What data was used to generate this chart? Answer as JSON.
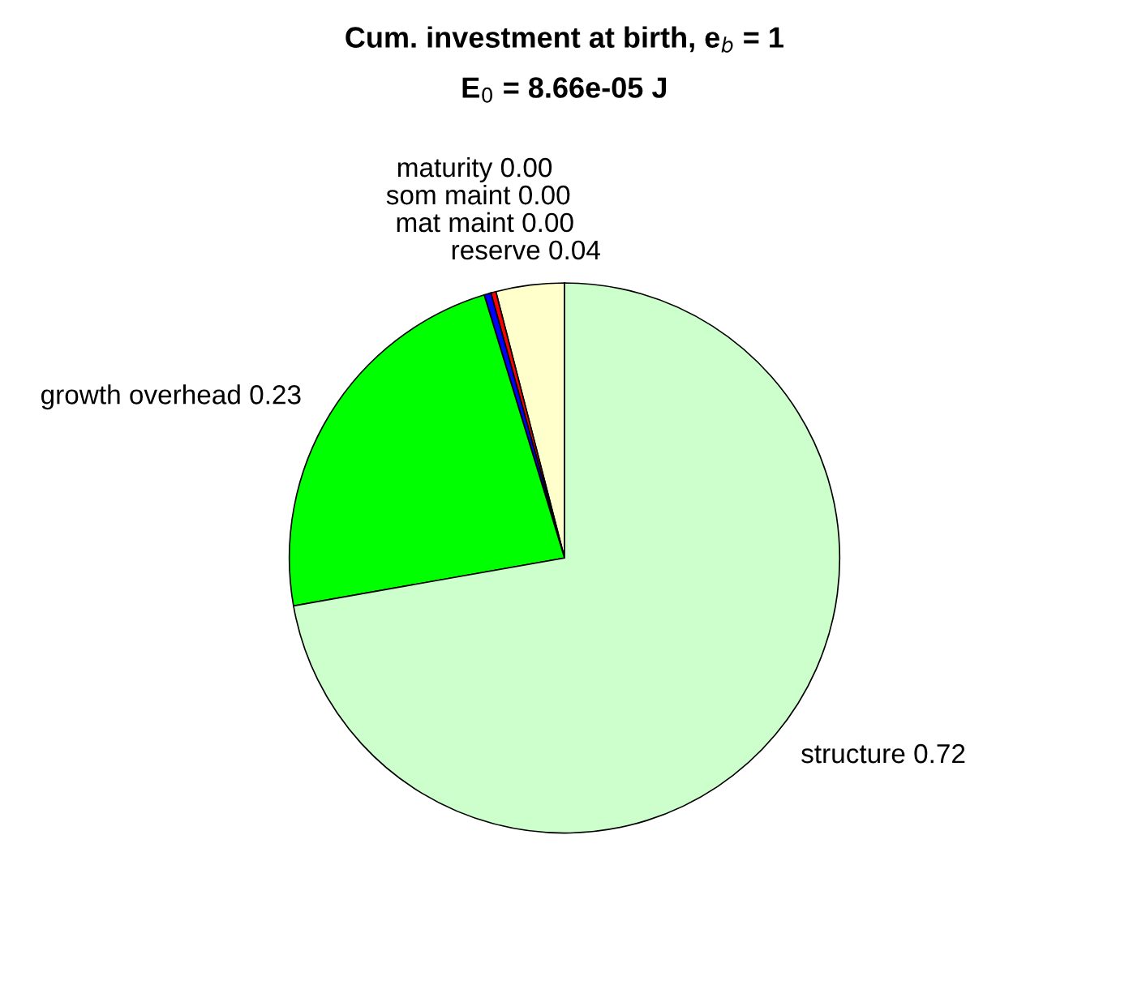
{
  "chart_data": {
    "type": "pie",
    "title": "Cum. investment at birth, e$_{b}$ = 1",
    "subtitle": "E$_{0}$ = 8.66e-05 J",
    "categories": [
      "reserve",
      "mat maint",
      "som maint",
      "maturity",
      "growth overhead",
      "structure"
    ],
    "values": [
      0.04,
      0.003,
      0.004,
      0.0,
      0.23,
      0.72
    ],
    "value_labels": [
      "0.04",
      "0.00",
      "0.00",
      "0.00",
      "0.23",
      "0.72"
    ],
    "colors": [
      "#ffffcc",
      "#ff0000",
      "#0000ff",
      "#000000",
      "#00ff00",
      "#ccffcc"
    ]
  }
}
